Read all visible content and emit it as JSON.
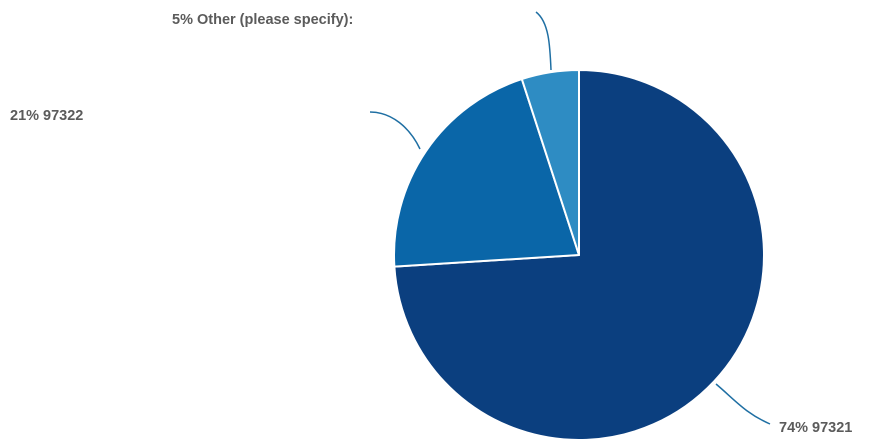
{
  "chart_data": {
    "type": "pie",
    "title": "",
    "slices": [
      {
        "label": "97321",
        "value": 74,
        "display": "74% 97321",
        "color": "#0b3f7f"
      },
      {
        "label": "97322",
        "value": 21,
        "display": "21% 97322",
        "color": "#0a66a8"
      },
      {
        "label": "Other (please specify):",
        "value": 5,
        "display": "5% Other (please specify):",
        "color": "#2e8cc3"
      }
    ],
    "start_angle_deg": 0,
    "direction": "clockwise",
    "slice_border_color": "#ffffff",
    "leader_line_color": "#1f6fa3",
    "label_color": "#5b5b5b"
  }
}
